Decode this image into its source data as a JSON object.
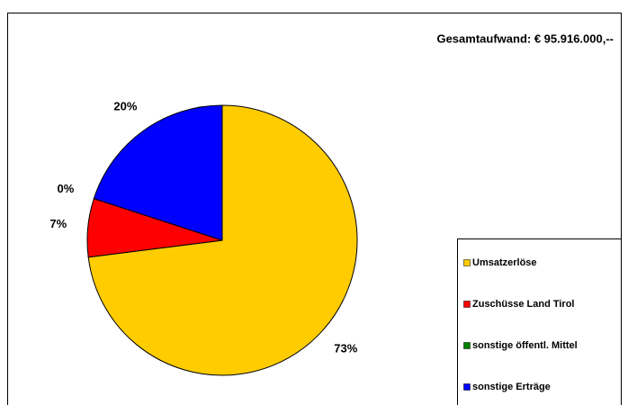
{
  "chart_data": {
    "type": "pie",
    "title": "Gesamtaufwand: € 95.916.000,--",
    "categories": [
      "Umsatzerlöse",
      "Zuschüsse Land Tirol",
      "sonstige öffentl. Mittel",
      "sonstige Erträge"
    ],
    "values": [
      73,
      7,
      0,
      20
    ],
    "value_labels": [
      "73%",
      "7%",
      "0%",
      "20%"
    ],
    "colors": [
      "#ffcc00",
      "#ff0000",
      "#008000",
      "#0000ff"
    ],
    "legend": "lower right"
  }
}
